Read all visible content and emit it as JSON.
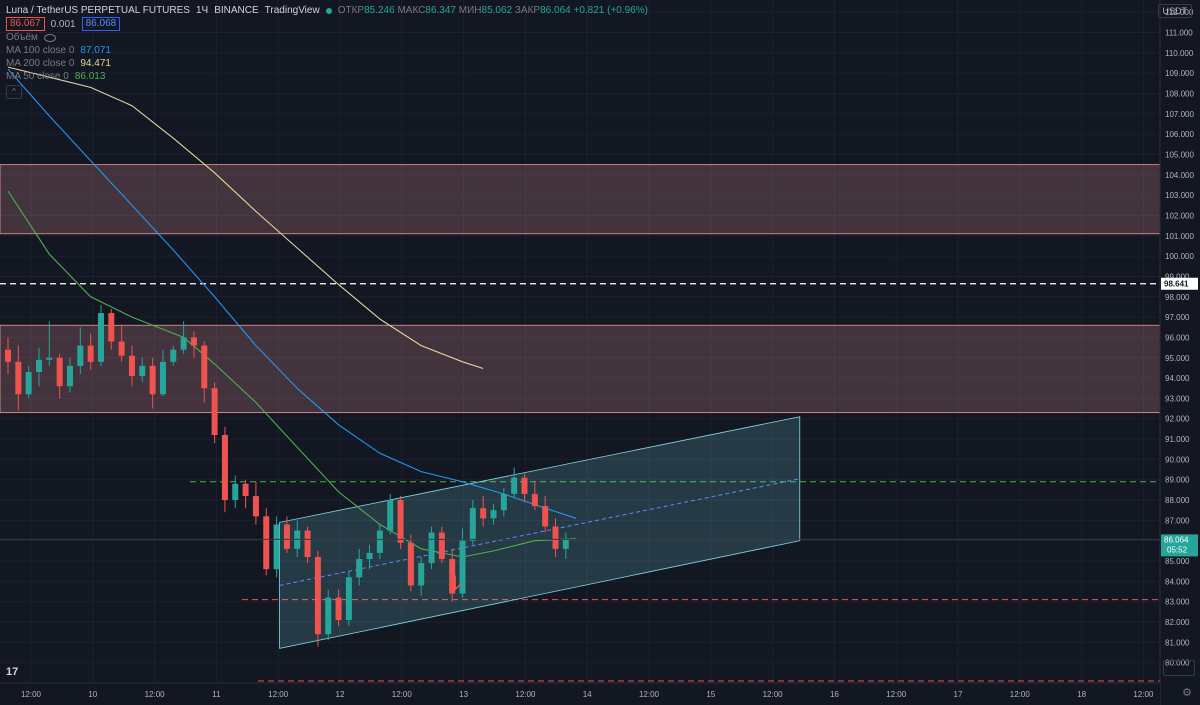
{
  "header": {
    "symbol": "Luna / TetherUS PERPETUAL FUTURES",
    "interval": "1Ч",
    "exchange": "BINANCE",
    "source": "TradingView",
    "open_label": "ОТКР",
    "open": "85.246",
    "high_label": "МАКС",
    "high": "86.347",
    "low_label": "МИН",
    "low": "85.062",
    "close_label": "ЗАКР",
    "close": "86.064",
    "change": "+0.821 (+0.96%)"
  },
  "price_boxes": {
    "bid": "86.067",
    "spread": "0.001",
    "ask": "86.068"
  },
  "volume_label": "Объём",
  "indicators": [
    {
      "label": "MA 100 close 0",
      "value": "87.071",
      "color": "#2196f3"
    },
    {
      "label": "MA 200 close 0",
      "value": "94.471",
      "color": "#e0d7a0"
    },
    {
      "label": "MA 50 close 0",
      "value": "86.013",
      "color": "#4caf50"
    }
  ],
  "currency_button": "USDT",
  "logo": "17",
  "colors": {
    "up": "#26a69a",
    "down": "#ef5350",
    "zone": "#ef9a9a",
    "channel": "#80deea"
  },
  "chart_data": {
    "type": "candlestick",
    "ylim": [
      79,
      112.6
    ],
    "y_ticks": [
      "80.000",
      "81.000",
      "82.000",
      "83.000",
      "84.000",
      "85.000",
      "86.000",
      "87.000",
      "88.000",
      "89.000",
      "90.000",
      "91.000",
      "92.000",
      "93.000",
      "94.000",
      "95.000",
      "96.000",
      "97.000",
      "98.000",
      "99.000",
      "100.000",
      "101.000",
      "102.000",
      "103.000",
      "104.000",
      "105.000",
      "106.000",
      "107.000",
      "108.000",
      "109.000",
      "110.000",
      "111.000",
      "112.000"
    ],
    "x_ticks": [
      "12:00",
      "10",
      "12:00",
      "11",
      "12:00",
      "12",
      "12:00",
      "13",
      "12:00",
      "14",
      "12:00",
      "15",
      "12:00",
      "16",
      "12:00",
      "17",
      "12:00",
      "18",
      "12:00"
    ],
    "current_price": "86.064",
    "countdown": "05:52",
    "dashed_level": "98.641",
    "zones": [
      {
        "from": 101.1,
        "to": 104.5
      },
      {
        "from": 92.3,
        "to": 96.6
      }
    ],
    "horizontal_lines": [
      {
        "y": 88.9,
        "style": "green-dashed"
      },
      {
        "y": 83.1,
        "style": "red-dashed"
      },
      {
        "y": 79.1,
        "style": "red-dashed"
      }
    ],
    "channel": {
      "bars": [
        26,
        66
      ],
      "lower_start": 80.7,
      "lower_end": 86.0,
      "upper_start": 86.9,
      "upper_end": 92.1
    },
    "arrow_bar": 43,
    "candles": [
      {
        "o": 95.4,
        "h": 96.0,
        "l": 94.2,
        "c": 94.8
      },
      {
        "o": 94.8,
        "h": 95.6,
        "l": 92.4,
        "c": 93.2
      },
      {
        "o": 93.2,
        "h": 94.6,
        "l": 93.0,
        "c": 94.3
      },
      {
        "o": 94.3,
        "h": 95.5,
        "l": 93.6,
        "c": 94.9
      },
      {
        "o": 94.9,
        "h": 96.8,
        "l": 94.6,
        "c": 95.0
      },
      {
        "o": 95.0,
        "h": 95.2,
        "l": 93.0,
        "c": 93.6
      },
      {
        "o": 93.6,
        "h": 95.0,
        "l": 93.3,
        "c": 94.6
      },
      {
        "o": 94.6,
        "h": 96.5,
        "l": 94.2,
        "c": 95.6
      },
      {
        "o": 95.6,
        "h": 96.2,
        "l": 94.4,
        "c": 94.8
      },
      {
        "o": 94.8,
        "h": 97.6,
        "l": 94.6,
        "c": 97.2
      },
      {
        "o": 97.2,
        "h": 97.4,
        "l": 95.4,
        "c": 95.8
      },
      {
        "o": 95.8,
        "h": 96.6,
        "l": 94.8,
        "c": 95.1
      },
      {
        "o": 95.1,
        "h": 95.6,
        "l": 93.6,
        "c": 94.1
      },
      {
        "o": 94.1,
        "h": 95.0,
        "l": 93.8,
        "c": 94.6
      },
      {
        "o": 94.6,
        "h": 95.0,
        "l": 92.5,
        "c": 93.2
      },
      {
        "o": 93.2,
        "h": 95.4,
        "l": 93.1,
        "c": 94.8
      },
      {
        "o": 94.8,
        "h": 95.6,
        "l": 94.6,
        "c": 95.4
      },
      {
        "o": 95.4,
        "h": 96.8,
        "l": 95.2,
        "c": 96.0
      },
      {
        "o": 96.0,
        "h": 96.3,
        "l": 95.0,
        "c": 95.6
      },
      {
        "o": 95.6,
        "h": 95.8,
        "l": 92.8,
        "c": 93.5
      },
      {
        "o": 93.5,
        "h": 93.8,
        "l": 90.8,
        "c": 91.2
      },
      {
        "o": 91.2,
        "h": 91.6,
        "l": 87.4,
        "c": 88.0
      },
      {
        "o": 88.0,
        "h": 89.2,
        "l": 87.6,
        "c": 88.8
      },
      {
        "o": 88.8,
        "h": 89.0,
        "l": 87.6,
        "c": 88.2
      },
      {
        "o": 88.2,
        "h": 88.9,
        "l": 86.8,
        "c": 87.2
      },
      {
        "o": 87.2,
        "h": 87.6,
        "l": 84.3,
        "c": 84.6
      },
      {
        "o": 84.6,
        "h": 87.2,
        "l": 84.2,
        "c": 86.8
      },
      {
        "o": 86.8,
        "h": 87.2,
        "l": 85.4,
        "c": 85.6
      },
      {
        "o": 85.6,
        "h": 87.0,
        "l": 85.2,
        "c": 86.5
      },
      {
        "o": 86.5,
        "h": 86.7,
        "l": 84.9,
        "c": 85.2
      },
      {
        "o": 85.2,
        "h": 85.5,
        "l": 80.8,
        "c": 81.4
      },
      {
        "o": 81.4,
        "h": 83.6,
        "l": 81.1,
        "c": 83.2
      },
      {
        "o": 83.2,
        "h": 83.6,
        "l": 81.8,
        "c": 82.1
      },
      {
        "o": 82.1,
        "h": 84.5,
        "l": 81.8,
        "c": 84.2
      },
      {
        "o": 84.2,
        "h": 85.6,
        "l": 83.8,
        "c": 85.1
      },
      {
        "o": 85.1,
        "h": 85.8,
        "l": 84.6,
        "c": 85.4
      },
      {
        "o": 85.4,
        "h": 86.8,
        "l": 85.1,
        "c": 86.5
      },
      {
        "o": 86.5,
        "h": 88.3,
        "l": 86.3,
        "c": 88.0
      },
      {
        "o": 88.0,
        "h": 88.2,
        "l": 85.6,
        "c": 85.9
      },
      {
        "o": 85.9,
        "h": 86.3,
        "l": 83.5,
        "c": 83.8
      },
      {
        "o": 83.8,
        "h": 85.2,
        "l": 83.3,
        "c": 84.9
      },
      {
        "o": 84.9,
        "h": 86.7,
        "l": 84.6,
        "c": 86.4
      },
      {
        "o": 86.4,
        "h": 86.7,
        "l": 84.9,
        "c": 85.1
      },
      {
        "o": 85.1,
        "h": 85.6,
        "l": 83.0,
        "c": 83.4
      },
      {
        "o": 83.4,
        "h": 86.6,
        "l": 83.2,
        "c": 86.0
      },
      {
        "o": 86.0,
        "h": 88.0,
        "l": 85.8,
        "c": 87.6
      },
      {
        "o": 87.6,
        "h": 88.2,
        "l": 86.7,
        "c": 87.1
      },
      {
        "o": 87.1,
        "h": 87.8,
        "l": 86.8,
        "c": 87.5
      },
      {
        "o": 87.5,
        "h": 88.6,
        "l": 87.2,
        "c": 88.3
      },
      {
        "o": 88.3,
        "h": 89.6,
        "l": 88.1,
        "c": 89.1
      },
      {
        "o": 89.1,
        "h": 89.3,
        "l": 87.9,
        "c": 88.3
      },
      {
        "o": 88.3,
        "h": 88.9,
        "l": 87.5,
        "c": 87.7
      },
      {
        "o": 87.7,
        "h": 88.2,
        "l": 86.4,
        "c": 86.7
      },
      {
        "o": 86.7,
        "h": 87.1,
        "l": 85.2,
        "c": 85.6
      },
      {
        "o": 85.6,
        "h": 86.4,
        "l": 85.1,
        "c": 86.1
      }
    ],
    "ma50": [
      [
        0,
        103.2
      ],
      [
        4,
        100.1
      ],
      [
        8,
        98.0
      ],
      [
        12,
        97.0
      ],
      [
        17,
        96.0
      ],
      [
        20,
        94.7
      ],
      [
        24,
        92.8
      ],
      [
        28,
        90.6
      ],
      [
        32,
        88.4
      ],
      [
        36,
        86.8
      ],
      [
        40,
        85.6
      ],
      [
        44,
        85.2
      ],
      [
        47,
        85.5
      ],
      [
        51,
        86.0
      ],
      [
        55,
        86.1
      ]
    ],
    "ma100": [
      [
        0,
        109.2
      ],
      [
        4,
        106.9
      ],
      [
        8,
        104.7
      ],
      [
        12,
        102.5
      ],
      [
        16,
        100.3
      ],
      [
        20,
        98.0
      ],
      [
        24,
        95.6
      ],
      [
        28,
        93.5
      ],
      [
        32,
        91.7
      ],
      [
        36,
        90.3
      ],
      [
        40,
        89.4
      ],
      [
        44,
        88.9
      ],
      [
        48,
        88.3
      ],
      [
        52,
        87.6
      ],
      [
        55,
        87.1
      ]
    ],
    "ma200": [
      [
        0,
        109.3
      ],
      [
        4,
        108.8
      ],
      [
        8,
        108.3
      ],
      [
        12,
        107.4
      ],
      [
        16,
        105.8
      ],
      [
        20,
        104.1
      ],
      [
        24,
        102.2
      ],
      [
        28,
        100.4
      ],
      [
        32,
        98.6
      ],
      [
        36,
        96.9
      ],
      [
        40,
        95.6
      ],
      [
        44,
        94.8
      ],
      [
        46,
        94.47
      ]
    ]
  }
}
